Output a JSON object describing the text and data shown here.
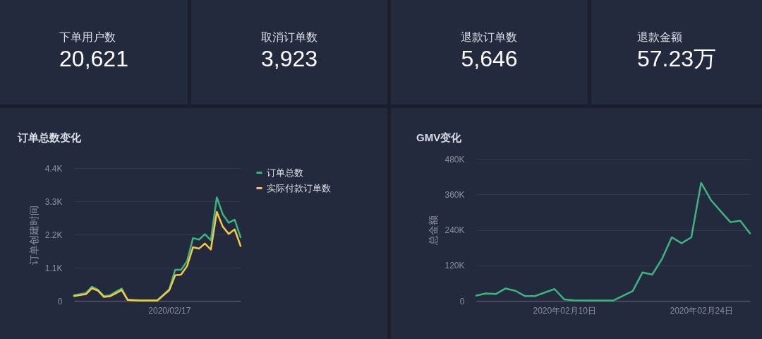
{
  "chart_data": [
    {
      "type": "other",
      "title": "下单用户数",
      "annotations": [
        "20,621"
      ]
    },
    {
      "type": "other",
      "title": "取消订单数",
      "annotations": [
        "3,923"
      ]
    },
    {
      "type": "other",
      "title": "退款订单数",
      "annotations": [
        "5,646"
      ]
    },
    {
      "type": "other",
      "title": "退款金额",
      "annotations": [
        "57.23万"
      ]
    },
    {
      "type": "line",
      "title": "订单总数变化",
      "ylabel": "订单创建时间",
      "categories": [
        null,
        null,
        null,
        null,
        null,
        null,
        null,
        null,
        null,
        null,
        null,
        null,
        null,
        null,
        null,
        null,
        "2020/02/17",
        null,
        null,
        null,
        null,
        null,
        null,
        null,
        null,
        null,
        null,
        null,
        null
      ],
      "ylim": [
        0,
        4400
      ],
      "yticks": [
        0,
        {
          "value": 1100,
          "label": "1.1K"
        },
        {
          "value": 2200,
          "label": "2.2K"
        },
        {
          "value": 3300,
          "label": "3.3K"
        },
        {
          "value": 4400,
          "label": "4.4K"
        }
      ],
      "grid": "y",
      "legend": "top right",
      "series": [
        {
          "name": "订单总数",
          "color": "#3fb37f",
          "values": [
            190,
            220,
            260,
            470,
            370,
            160,
            180,
            300,
            410,
            40,
            30,
            20,
            20,
            20,
            20,
            200,
            380,
            1030,
            1030,
            1320,
            2080,
            2030,
            2210,
            2010,
            3430,
            2870,
            2590,
            2690,
            2110
          ]
        },
        {
          "name": "实际付款订单数",
          "color": "#f4c745",
          "values": [
            160,
            190,
            220,
            420,
            340,
            130,
            150,
            250,
            360,
            30,
            20,
            10,
            10,
            10,
            10,
            180,
            350,
            850,
            870,
            1150,
            1780,
            1730,
            1900,
            1700,
            2950,
            2460,
            2220,
            2370,
            1820
          ]
        }
      ]
    },
    {
      "type": "line",
      "title": "GMV变化",
      "ylabel": "总金额",
      "x": [
        "2020-02-01",
        "2020-02-02",
        "2020-02-03",
        "2020-02-04",
        "2020-02-05",
        "2020-02-06",
        "2020-02-07",
        "2020-02-08",
        "2020-02-09",
        "2020-02-10",
        "2020-02-11",
        "2020-02-12",
        "2020-02-13",
        "2020-02-14",
        "2020-02-15",
        "2020-02-16",
        "2020-02-17",
        "2020-02-18",
        "2020-02-19",
        "2020-02-20",
        "2020-02-21",
        "2020-02-22",
        "2020-02-23",
        "2020-02-24",
        "2020-02-25",
        "2020-02-26",
        "2020-02-27",
        "2020-02-28",
        "2020-02-29"
      ],
      "xlim": [
        "2020-02-01",
        "2020-02-29"
      ],
      "xticks": [
        {
          "value": "2020-02-10",
          "label": "2020年02月10日"
        },
        {
          "value": "2020-02-24",
          "label": "2020年02月24日"
        }
      ],
      "ylim": [
        0,
        480000
      ],
      "yticks": [
        0,
        {
          "value": 120000,
          "label": "120K"
        },
        {
          "value": 240000,
          "label": "240K"
        },
        {
          "value": 360000,
          "label": "360K"
        },
        {
          "value": 480000,
          "label": "480K"
        }
      ],
      "grid": "y",
      "color": "#3fb37f",
      "values": [
        18000,
        25000,
        23000,
        42000,
        34000,
        16000,
        16000,
        28000,
        40000,
        5000,
        2000,
        1000,
        1000,
        1000,
        1000,
        17000,
        33000,
        96000,
        89000,
        142000,
        215000,
        195000,
        215000,
        399000,
        341000,
        303000,
        266000,
        271000,
        228000
      ]
    }
  ]
}
